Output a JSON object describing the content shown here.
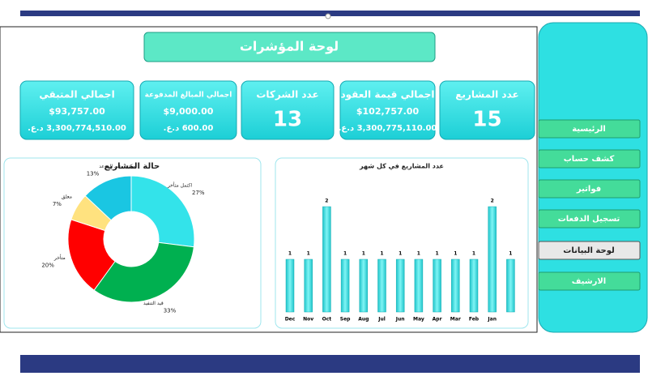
{
  "header": {
    "title": "لوحة المؤشرات"
  },
  "cards": [
    {
      "label": "عدد المشاريع",
      "value": 15
    },
    {
      "label": "اجمالي قيمة العقود",
      "usd": "$102,757.00",
      "local": "3,300,775,110.00 د.ع."
    },
    {
      "label": "عدد الشركات",
      "value": 13
    },
    {
      "label": "اجمالي المبالغ المدفوعة",
      "usd": "$9,000.00",
      "local": "600.00 د.ع."
    },
    {
      "label": "اجمالي المتبقي",
      "usd": "$93,757.00",
      "local": "3,300,774,510.00 د.ع."
    }
  ],
  "nav": [
    "الرئيسية",
    "كشف حساب",
    "فواتير",
    "تسجيل الدفعات",
    "لوحة البيانات",
    "الارشيف"
  ],
  "active_nav": 4,
  "chart_data": [
    {
      "type": "bar",
      "title": "عدد المشاريع في كل شهر",
      "color": "#2fd8dc",
      "categories": [
        "Dec",
        "Nov",
        "Oct",
        "Sep",
        "Aug",
        "Jul",
        "Jun",
        "May",
        "Apr",
        "Mar",
        "Feb",
        "Jan",
        null
      ],
      "values": [
        1,
        1,
        2,
        1,
        1,
        1,
        1,
        1,
        1,
        1,
        1,
        2,
        1
      ]
    },
    {
      "type": "pie",
      "title": "حالة المشاريع",
      "categories": [
        "اكتمل متأخر",
        "قيد التنفيذ",
        "متأخر",
        "معلق",
        "مكتمل في الموعد"
      ],
      "values": [
        27,
        33,
        20,
        7,
        13
      ],
      "value_labels": [
        "27%",
        "33%",
        "20%",
        "7%",
        "13%"
      ],
      "colors": [
        "#33e3ea",
        "#00b050",
        "#ff0000",
        "#ffe27f",
        "#1ac6e2"
      ]
    }
  ]
}
